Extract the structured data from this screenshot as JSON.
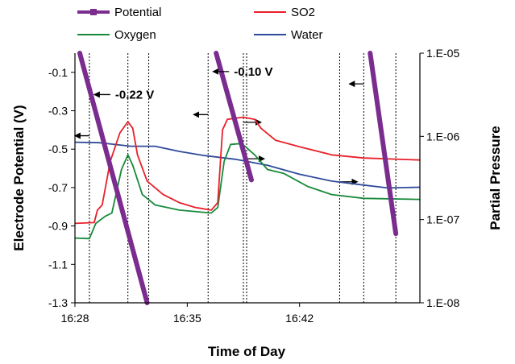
{
  "chart_data": {
    "type": "line",
    "xlabel": "Time of Day",
    "ylabel": "Electrode Potential (V)",
    "y2label": "Partial Pressure",
    "x_ticks": [
      "16:28",
      "16:35",
      "16:42"
    ],
    "x_tick_minutes": [
      0,
      7,
      14
    ],
    "xlim": [
      0,
      21.5
    ],
    "ylim": [
      -1.3,
      0
    ],
    "y_ticks": [
      -0.1,
      -0.3,
      -0.5,
      -0.7,
      -0.9,
      -1.1,
      -1.3
    ],
    "y_tick_labels": [
      "-0.1",
      "-0.3",
      "-0.5",
      "-0.7",
      "-0.9",
      "-1.1",
      "-1.3"
    ],
    "y2_scale": "log",
    "y2lim": [
      1e-08,
      1e-05
    ],
    "y2_ticks": [
      1e-05,
      1e-06,
      1e-07,
      1e-08
    ],
    "y2_tick_labels": [
      "1.E-05",
      "1.E-06",
      "1.E-07",
      "1.E-08"
    ],
    "legend_position": "top",
    "legend": [
      "Potential",
      "SO2",
      "Oxygen",
      "Water"
    ],
    "series": [
      {
        "name": "Potential",
        "axis": "left",
        "color": "#7b2c8f",
        "segments": [
          [
            [
              0.3,
              0.0
            ],
            [
              4.5,
              -1.3
            ]
          ],
          [
            [
              8.8,
              0.0
            ],
            [
              11.0,
              -0.66
            ]
          ],
          [
            [
              18.4,
              0.0
            ],
            [
              20.0,
              -0.94
            ]
          ]
        ]
      },
      {
        "name": "SO2",
        "axis": "right",
        "color": "#e8202a",
        "points": [
          [
            0,
            9e-08
          ],
          [
            1.2,
            9.2e-08
          ],
          [
            1.4,
            1.3e-07
          ],
          [
            1.7,
            1.5e-07
          ],
          [
            2.2,
            5e-07
          ],
          [
            2.8,
            1.1e-06
          ],
          [
            3.3,
            1.5e-06
          ],
          [
            3.6,
            1.25e-06
          ],
          [
            3.9,
            6e-07
          ],
          [
            4.5,
            2.9e-07
          ],
          [
            5.5,
            2e-07
          ],
          [
            6.5,
            1.6e-07
          ],
          [
            7.5,
            1.4e-07
          ],
          [
            8.5,
            1.3e-07
          ],
          [
            8.9,
            1.6e-07
          ],
          [
            9.2,
            1.2e-06
          ],
          [
            9.5,
            1.6e-06
          ],
          [
            10.5,
            1.7e-06
          ],
          [
            11.2,
            1.6e-06
          ],
          [
            11.6,
            1.25e-06
          ],
          [
            12.5,
            9e-07
          ],
          [
            14,
            7.5e-07
          ],
          [
            16,
            6e-07
          ],
          [
            18,
            5.5e-07
          ],
          [
            21.5,
            5.2e-07
          ]
        ]
      },
      {
        "name": "Oxygen",
        "axis": "right",
        "color": "#178a3a",
        "points": [
          [
            0,
            6e-08
          ],
          [
            0.9,
            5.9e-08
          ],
          [
            1.3,
            9e-08
          ],
          [
            1.9,
            1.1e-07
          ],
          [
            2.3,
            1.2e-07
          ],
          [
            2.9,
            4e-07
          ],
          [
            3.3,
            6e-07
          ],
          [
            3.6,
            4.5e-07
          ],
          [
            4.2,
            2e-07
          ],
          [
            5,
            1.5e-07
          ],
          [
            6.5,
            1.3e-07
          ],
          [
            8.5,
            1.2e-07
          ],
          [
            8.9,
            1.4e-07
          ],
          [
            9.3,
            5e-07
          ],
          [
            9.7,
            8e-07
          ],
          [
            10.4,
            8.2e-07
          ],
          [
            11.2,
            6e-07
          ],
          [
            12,
            4e-07
          ],
          [
            13,
            3.6e-07
          ],
          [
            14.5,
            2.5e-07
          ],
          [
            16,
            2e-07
          ],
          [
            18,
            1.8e-07
          ],
          [
            21.5,
            1.75e-07
          ]
        ]
      },
      {
        "name": "Water",
        "axis": "right",
        "color": "#2e4a9a",
        "points": [
          [
            0,
            8.5e-07
          ],
          [
            1.5,
            8.4e-07
          ],
          [
            3.5,
            7.6e-07
          ],
          [
            5,
            7.6e-07
          ],
          [
            6.5,
            6.6e-07
          ],
          [
            8,
            5.9e-07
          ],
          [
            10,
            5.3e-07
          ],
          [
            12,
            4.5e-07
          ],
          [
            14,
            3.5e-07
          ],
          [
            16,
            2.9e-07
          ],
          [
            18,
            2.6e-07
          ],
          [
            19.5,
            2.4e-07
          ],
          [
            21.5,
            2.45e-07
          ]
        ]
      }
    ],
    "annotations": [
      {
        "text": "-0.22 V",
        "x": 1.1,
        "y": -0.22,
        "arrow_direction": "left"
      },
      {
        "text": "-0.10 V",
        "x": 8.5,
        "y": -0.1,
        "arrow_direction": "left"
      }
    ],
    "reference_markers": [
      {
        "x": 0.9,
        "arrow_y": -0.43,
        "direction": "left"
      },
      {
        "x": 3.3,
        "arrow_y": null,
        "direction": null
      },
      {
        "x": 4.6,
        "arrow_y": null,
        "direction": null
      },
      {
        "x": 8.3,
        "arrow_y": -0.32,
        "direction": "left"
      },
      {
        "x": 10.5,
        "arrow_y": -0.36,
        "direction": "right"
      },
      {
        "x": 10.7,
        "arrow_y": -0.55,
        "direction": "right"
      },
      {
        "x": 18.0,
        "arrow_y": -0.16,
        "direction": "left"
      },
      {
        "x": 16.5,
        "arrow_y": -0.67,
        "direction": "right"
      },
      {
        "x": 20.0,
        "arrow_y": null,
        "direction": null
      }
    ]
  }
}
